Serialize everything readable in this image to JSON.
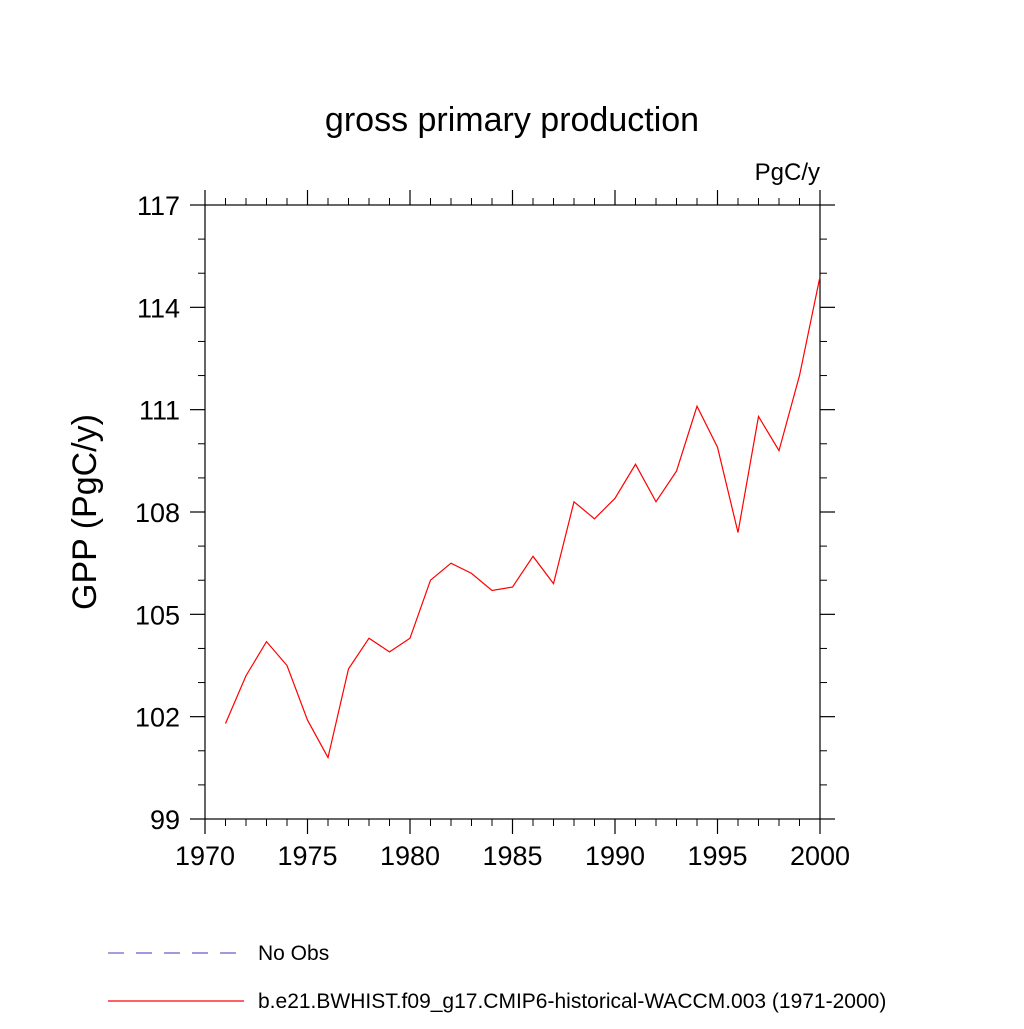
{
  "chart_data": {
    "type": "line",
    "title": "gross primary production",
    "units_label": "PgC/y",
    "xlabel": "",
    "ylabel": "GPP  (PgC/y)",
    "xlim": [
      1970,
      2000
    ],
    "ylim": [
      99,
      117
    ],
    "x_ticks": [
      "1970",
      "1975",
      "1980",
      "1985",
      "1990",
      "1995",
      "2000"
    ],
    "y_ticks": [
      "99",
      "102",
      "105",
      "108",
      "111",
      "114",
      "117"
    ],
    "grid": false,
    "legend_position": "bottom",
    "series": [
      {
        "name": "No Obs",
        "color": "#6a5acd",
        "style": "dashed",
        "x": [],
        "values": []
      },
      {
        "name": "b.e21.BWHIST.f09_g17.CMIP6-historical-WACCM.003 (1971-2000)",
        "color": "#ff0000",
        "style": "solid",
        "x": [
          1971,
          1972,
          1973,
          1974,
          1975,
          1976,
          1977,
          1978,
          1979,
          1980,
          1981,
          1982,
          1983,
          1984,
          1985,
          1986,
          1987,
          1988,
          1989,
          1990,
          1991,
          1992,
          1993,
          1994,
          1995,
          1996,
          1997,
          1998,
          1999,
          2000
        ],
        "values": [
          101.8,
          103.2,
          104.2,
          103.5,
          101.9,
          100.8,
          103.4,
          104.3,
          103.9,
          104.3,
          106.0,
          106.5,
          106.2,
          105.7,
          105.8,
          106.7,
          105.9,
          108.3,
          107.8,
          108.4,
          109.4,
          108.3,
          109.2,
          111.1,
          109.9,
          107.4,
          110.8,
          109.8,
          112.0,
          114.9
        ]
      }
    ]
  }
}
